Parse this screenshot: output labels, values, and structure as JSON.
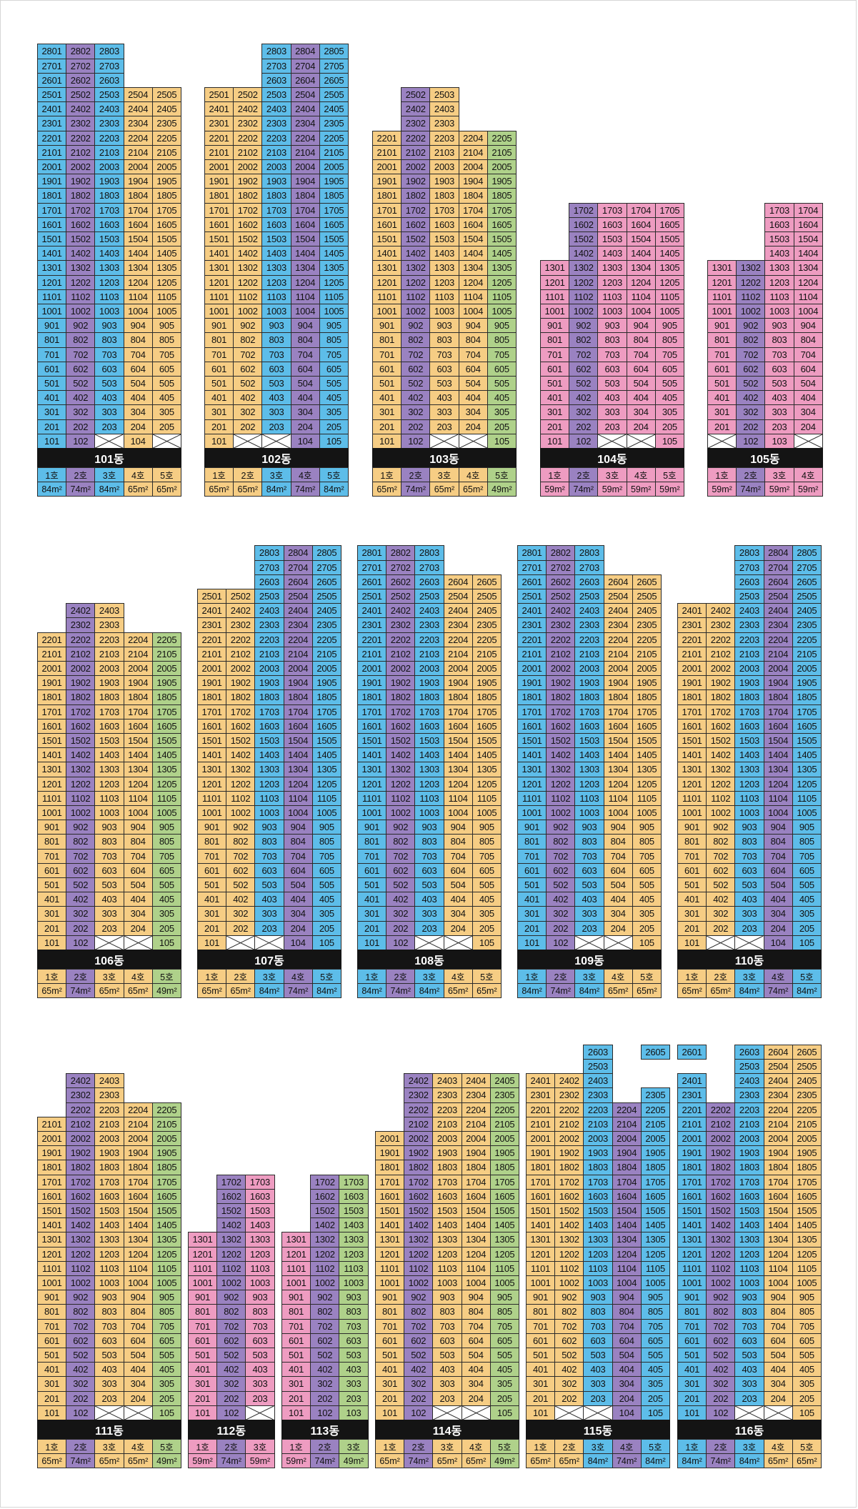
{
  "colors": {
    "A": "#5dbde9",
    "B": "#9a82c1",
    "C": "#f6cd84",
    "D": "#afd18a",
    "E": "#ee9cc1"
  },
  "buildings": [
    {
      "label": "101동",
      "row": 0,
      "units": [
        {
          "ho": 1,
          "color": "A",
          "area": "84m²",
          "floors": [
            1,
            28
          ],
          "empty": []
        },
        {
          "ho": 2,
          "color": "B",
          "area": "74m²",
          "floors": [
            1,
            28
          ],
          "empty": []
        },
        {
          "ho": 3,
          "color": "A",
          "area": "84m²",
          "floors": [
            1,
            28
          ],
          "empty": [
            1
          ]
        },
        {
          "ho": 4,
          "color": "C",
          "area": "65m²",
          "floors": [
            1,
            25
          ],
          "empty": []
        },
        {
          "ho": 5,
          "color": "C",
          "area": "65m²",
          "floors": [
            1,
            25
          ],
          "empty": [
            1
          ]
        }
      ]
    },
    {
      "label": "102동",
      "row": 0,
      "units": [
        {
          "ho": 1,
          "color": "C",
          "area": "65m²",
          "floors": [
            1,
            25
          ],
          "empty": []
        },
        {
          "ho": 2,
          "color": "C",
          "area": "65m²",
          "floors": [
            1,
            25
          ],
          "empty": [
            1
          ]
        },
        {
          "ho": 3,
          "color": "A",
          "area": "84m²",
          "floors": [
            1,
            28
          ],
          "empty": [
            1
          ]
        },
        {
          "ho": 4,
          "color": "B",
          "area": "74m²",
          "floors": [
            1,
            28
          ],
          "empty": []
        },
        {
          "ho": 5,
          "color": "A",
          "area": "84m²",
          "floors": [
            1,
            28
          ],
          "empty": []
        }
      ]
    },
    {
      "label": "103동",
      "row": 0,
      "units": [
        {
          "ho": 1,
          "color": "C",
          "area": "65m²",
          "floors": [
            1,
            22
          ],
          "empty": []
        },
        {
          "ho": 2,
          "color": "B",
          "area": "74m²",
          "floors": [
            1,
            25
          ],
          "empty": []
        },
        {
          "ho": 3,
          "color": "C",
          "area": "65m²",
          "floors": [
            1,
            25
          ],
          "empty": [
            1
          ]
        },
        {
          "ho": 4,
          "color": "C",
          "area": "65m²",
          "floors": [
            1,
            22
          ],
          "empty": [
            1
          ]
        },
        {
          "ho": 5,
          "color": "D",
          "area": "49m²",
          "floors": [
            1,
            22
          ],
          "empty": []
        }
      ]
    },
    {
      "label": "104동",
      "row": 0,
      "units": [
        {
          "ho": 1,
          "color": "E",
          "area": "59m²",
          "floors": [
            1,
            13
          ],
          "empty": []
        },
        {
          "ho": 2,
          "color": "B",
          "area": "74m²",
          "floors": [
            1,
            17
          ],
          "empty": []
        },
        {
          "ho": 3,
          "color": "E",
          "area": "59m²",
          "floors": [
            1,
            17
          ],
          "empty": [
            1
          ]
        },
        {
          "ho": 4,
          "color": "E",
          "area": "59m²",
          "floors": [
            1,
            17
          ],
          "empty": [
            1
          ]
        },
        {
          "ho": 5,
          "color": "E",
          "area": "59m²",
          "floors": [
            1,
            17
          ],
          "empty": []
        }
      ]
    },
    {
      "label": "105동",
      "row": 0,
      "units": [
        {
          "ho": 1,
          "color": "E",
          "area": "59m²",
          "floors": [
            1,
            13
          ],
          "empty": [
            1
          ]
        },
        {
          "ho": 2,
          "color": "B",
          "area": "74m²",
          "floors": [
            1,
            13
          ],
          "empty": []
        },
        {
          "ho": 3,
          "color": "E",
          "area": "59m²",
          "floors": [
            1,
            17
          ],
          "empty": []
        },
        {
          "ho": 4,
          "color": "E",
          "area": "59m²",
          "floors": [
            1,
            17
          ],
          "empty": [
            1
          ]
        }
      ]
    },
    {
      "label": "106동",
      "row": 1,
      "units": [
        {
          "ho": 1,
          "color": "C",
          "area": "65m²",
          "floors": [
            1,
            22
          ],
          "empty": []
        },
        {
          "ho": 2,
          "color": "B",
          "area": "74m²",
          "floors": [
            1,
            24
          ],
          "empty": []
        },
        {
          "ho": 3,
          "color": "C",
          "area": "65m²",
          "floors": [
            1,
            24
          ],
          "empty": [
            1
          ]
        },
        {
          "ho": 4,
          "color": "C",
          "area": "65m²",
          "floors": [
            1,
            22
          ],
          "empty": [
            1
          ]
        },
        {
          "ho": 5,
          "color": "D",
          "area": "49m²",
          "floors": [
            1,
            22
          ],
          "empty": []
        }
      ]
    },
    {
      "label": "107동",
      "row": 1,
      "units": [
        {
          "ho": 1,
          "color": "C",
          "area": "65m²",
          "floors": [
            1,
            25
          ],
          "empty": []
        },
        {
          "ho": 2,
          "color": "C",
          "area": "65m²",
          "floors": [
            1,
            25
          ],
          "empty": [
            1
          ]
        },
        {
          "ho": 3,
          "color": "A",
          "area": "84m²",
          "floors": [
            1,
            28
          ],
          "empty": [
            1
          ]
        },
        {
          "ho": 4,
          "color": "B",
          "area": "74m²",
          "floors": [
            1,
            28
          ],
          "empty": []
        },
        {
          "ho": 5,
          "color": "A",
          "area": "84m²",
          "floors": [
            1,
            28
          ],
          "empty": []
        }
      ]
    },
    {
      "label": "108동",
      "row": 1,
      "units": [
        {
          "ho": 1,
          "color": "A",
          "area": "84m²",
          "floors": [
            1,
            28
          ],
          "empty": []
        },
        {
          "ho": 2,
          "color": "B",
          "area": "74m²",
          "floors": [
            1,
            28
          ],
          "empty": []
        },
        {
          "ho": 3,
          "color": "A",
          "area": "84m²",
          "floors": [
            1,
            28
          ],
          "empty": [
            1
          ]
        },
        {
          "ho": 4,
          "color": "C",
          "area": "65m²",
          "floors": [
            1,
            26
          ],
          "empty": [
            1
          ]
        },
        {
          "ho": 5,
          "color": "C",
          "area": "65m²",
          "floors": [
            1,
            26
          ],
          "empty": []
        }
      ]
    },
    {
      "label": "109동",
      "row": 1,
      "units": [
        {
          "ho": 1,
          "color": "A",
          "area": "84m²",
          "floors": [
            1,
            28
          ],
          "empty": []
        },
        {
          "ho": 2,
          "color": "B",
          "area": "74m²",
          "floors": [
            1,
            28
          ],
          "empty": []
        },
        {
          "ho": 3,
          "color": "A",
          "area": "84m²",
          "floors": [
            1,
            28
          ],
          "empty": [
            1
          ]
        },
        {
          "ho": 4,
          "color": "C",
          "area": "65m²",
          "floors": [
            1,
            26
          ],
          "empty": [
            1
          ]
        },
        {
          "ho": 5,
          "color": "C",
          "area": "65m²",
          "floors": [
            1,
            26
          ],
          "empty": []
        }
      ]
    },
    {
      "label": "110동",
      "row": 1,
      "units": [
        {
          "ho": 1,
          "color": "C",
          "area": "65m²",
          "floors": [
            1,
            24
          ],
          "empty": []
        },
        {
          "ho": 2,
          "color": "C",
          "area": "65m²",
          "floors": [
            1,
            24
          ],
          "empty": [
            1
          ]
        },
        {
          "ho": 3,
          "color": "A",
          "area": "84m²",
          "floors": [
            1,
            28
          ],
          "empty": [
            1
          ]
        },
        {
          "ho": 4,
          "color": "B",
          "area": "74m²",
          "floors": [
            1,
            28
          ],
          "empty": []
        },
        {
          "ho": 5,
          "color": "A",
          "area": "84m²",
          "floors": [
            1,
            28
          ],
          "empty": []
        }
      ]
    },
    {
      "label": "111동",
      "row": 2,
      "units": [
        {
          "ho": 1,
          "color": "C",
          "area": "65m²",
          "floors": [
            1,
            21
          ],
          "empty": []
        },
        {
          "ho": 2,
          "color": "B",
          "area": "74m²",
          "floors": [
            1,
            24
          ],
          "empty": []
        },
        {
          "ho": 3,
          "color": "C",
          "area": "65m²",
          "floors": [
            1,
            24
          ],
          "empty": [
            1
          ]
        },
        {
          "ho": 4,
          "color": "C",
          "area": "65m²",
          "floors": [
            1,
            22
          ],
          "empty": [
            1
          ]
        },
        {
          "ho": 5,
          "color": "D",
          "area": "49m²",
          "floors": [
            1,
            22
          ],
          "empty": []
        }
      ]
    },
    {
      "label": "112동",
      "row": 2,
      "units": [
        {
          "ho": 1,
          "color": "E",
          "area": "59m²",
          "floors": [
            1,
            13
          ],
          "empty": []
        },
        {
          "ho": 2,
          "color": "B",
          "area": "74m²",
          "floors": [
            1,
            17
          ],
          "empty": []
        },
        {
          "ho": 3,
          "color": "E",
          "area": "59m²",
          "floors": [
            1,
            17
          ],
          "empty": [
            1
          ]
        }
      ]
    },
    {
      "label": "113동",
      "row": 2,
      "units": [
        {
          "ho": 1,
          "color": "E",
          "area": "59m²",
          "floors": [
            1,
            13
          ],
          "empty": []
        },
        {
          "ho": 2,
          "color": "B",
          "area": "74m²",
          "floors": [
            1,
            17
          ],
          "empty": []
        },
        {
          "ho": 3,
          "color": "D",
          "area": "49m²",
          "floors": [
            1,
            17
          ],
          "empty": []
        }
      ]
    },
    {
      "label": "114동",
      "row": 2,
      "units": [
        {
          "ho": 1,
          "color": "C",
          "area": "65m²",
          "floors": [
            1,
            20
          ],
          "empty": []
        },
        {
          "ho": 2,
          "color": "B",
          "area": "74m²",
          "floors": [
            1,
            24
          ],
          "empty": []
        },
        {
          "ho": 3,
          "color": "C",
          "area": "65m²",
          "floors": [
            1,
            24
          ],
          "empty": [
            1
          ]
        },
        {
          "ho": 4,
          "color": "C",
          "area": "65m²",
          "floors": [
            1,
            24
          ],
          "empty": [
            1
          ]
        },
        {
          "ho": 5,
          "color": "D",
          "area": "49m²",
          "floors": [
            1,
            24
          ],
          "empty": []
        }
      ]
    },
    {
      "label": "115동",
      "row": 2,
      "units": [
        {
          "ho": 1,
          "color": "C",
          "area": "65m²",
          "floors": [
            1,
            24
          ],
          "empty": []
        },
        {
          "ho": 2,
          "color": "C",
          "area": "65m²",
          "floors": [
            1,
            24
          ],
          "empty": [
            1
          ]
        },
        {
          "ho": 3,
          "color": "A",
          "area": "84m²",
          "floors": [
            1,
            26
          ],
          "empty": [
            1
          ]
        },
        {
          "ho": 4,
          "color": "B",
          "area": "74m²",
          "floors": [
            1,
            22
          ],
          "empty": []
        },
        {
          "ho": 5,
          "color": "A",
          "area": "84m²",
          "floors": [
            1,
            26
          ],
          "empty": [],
          "skip": [
            24,
            25
          ]
        }
      ]
    },
    {
      "label": "116동",
      "row": 2,
      "units": [
        {
          "ho": 1,
          "color": "A",
          "area": "84m²",
          "floors": [
            1,
            26
          ],
          "empty": [],
          "skip": [
            25
          ]
        },
        {
          "ho": 2,
          "color": "B",
          "area": "74m²",
          "floors": [
            1,
            22
          ],
          "empty": []
        },
        {
          "ho": 3,
          "color": "A",
          "area": "84m²",
          "floors": [
            1,
            26
          ],
          "empty": [
            1
          ]
        },
        {
          "ho": 4,
          "color": "C",
          "area": "65m²",
          "floors": [
            1,
            26
          ],
          "empty": [
            1
          ]
        },
        {
          "ho": 5,
          "color": "C",
          "area": "65m²",
          "floors": [
            1,
            26
          ],
          "empty": []
        }
      ]
    }
  ]
}
